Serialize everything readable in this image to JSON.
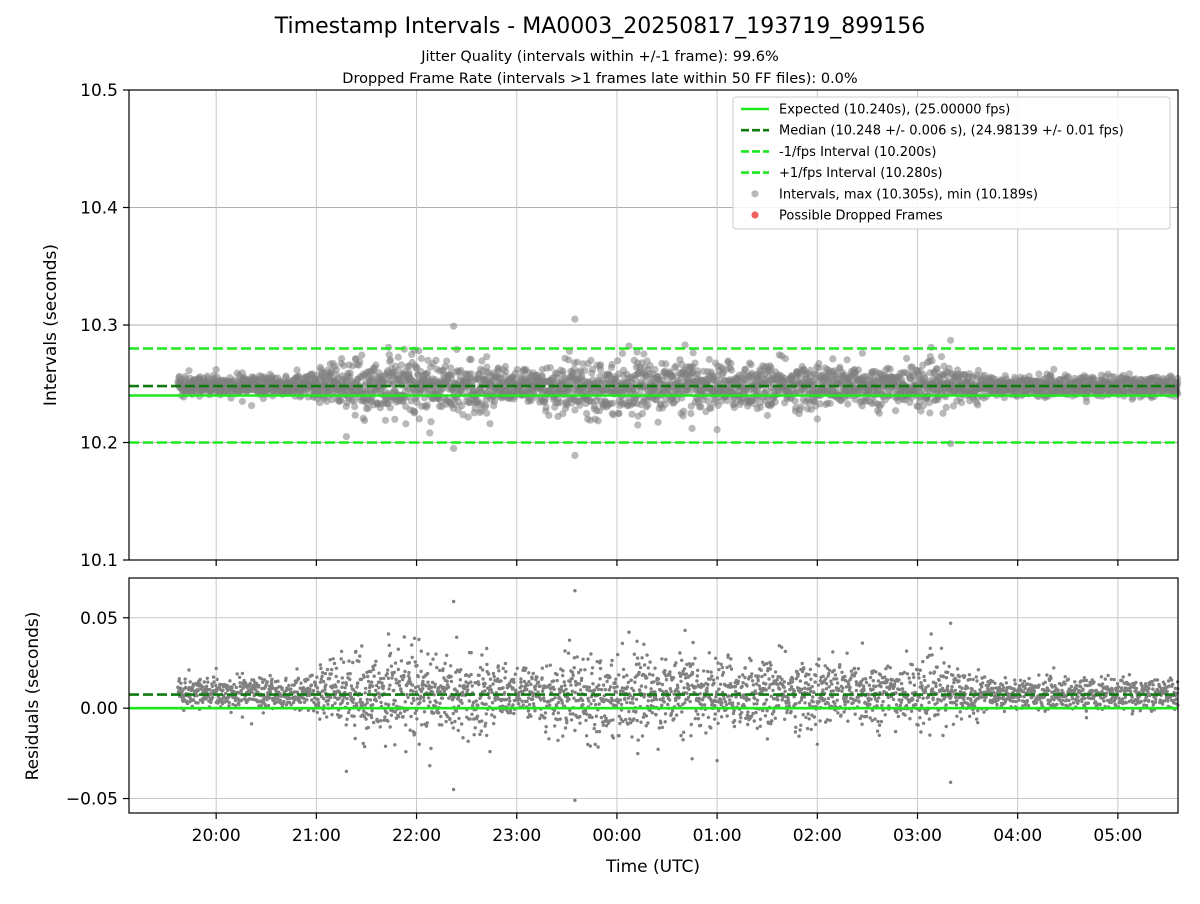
{
  "chart_data": [
    {
      "type": "scatter",
      "title": "Timestamp Intervals - MA0003_20250817_193719_899156",
      "subtitles": [
        "Jitter Quality (intervals within +/-1 frame): 99.6%",
        "Dropped Frame Rate (intervals >1 frames late within 50 FF files): 0.0%"
      ],
      "ylabel": "Intervals (seconds)",
      "ylim": [
        10.1,
        10.5
      ],
      "y_ticks": [
        "10.1",
        "10.2",
        "10.3",
        "10.4",
        "10.5"
      ],
      "grid": true,
      "legend_position": "top-right",
      "colors": {
        "expected": "#1ee81e",
        "median": "#107a10",
        "interval_band": "#1ee81e",
        "points": "#808080",
        "dropped": "#f05050"
      },
      "legend": [
        "Expected (10.240s), (25.00000 fps)",
        "Median (10.248 +/- 0.006 s), (24.98139 +/- 0.01 fps)",
        "-1/fps Interval (10.200s)",
        "+1/fps Interval (10.280s)",
        "Intervals, max (10.305s), min (10.189s)",
        "Possible Dropped Frames"
      ],
      "reference_lines": {
        "expected": 10.24,
        "median": 10.248,
        "minus_one_fps": 10.2,
        "plus_one_fps": 10.28
      },
      "series": [
        {
          "name": "Intervals, max (10.305s), min (10.189s)",
          "max": 10.305,
          "min": 10.189,
          "time_range_hours": [
            19.62,
            29.6
          ],
          "median": 10.248,
          "spread_profile": [
            [
              19.62,
              0.006
            ],
            [
              20.9,
              0.006
            ],
            [
              21.2,
              0.014
            ],
            [
              22.0,
              0.017
            ],
            [
              22.6,
              0.016
            ],
            [
              23.0,
              0.009
            ],
            [
              23.6,
              0.016
            ],
            [
              24.5,
              0.014
            ],
            [
              25.6,
              0.013
            ],
            [
              26.7,
              0.012
            ],
            [
              27.3,
              0.012
            ],
            [
              27.7,
              0.006
            ],
            [
              29.6,
              0.006
            ]
          ],
          "outliers": [
            [
              22.37,
              10.299
            ],
            [
              22.37,
              10.195
            ],
            [
              23.58,
              10.305
            ],
            [
              23.58,
              10.189
            ],
            [
              27.33,
              10.287
            ],
            [
              27.33,
              10.199
            ],
            [
              20.0,
              10.262
            ],
            [
              21.72,
              10.281
            ],
            [
              24.68,
              10.283
            ],
            [
              22.7,
              10.273
            ],
            [
              24.2,
              10.277
            ],
            [
              26.45,
              10.276
            ],
            [
              21.3,
              10.205
            ],
            [
              25.0,
              10.211
            ],
            [
              24.75,
              10.212
            ],
            [
              26.0,
              10.22
            ]
          ]
        },
        {
          "name": "Possible Dropped Frames",
          "points": []
        }
      ]
    },
    {
      "type": "scatter",
      "xlabel": "Time (UTC)",
      "ylabel": "Residuals (seconds)",
      "ylim": [
        -0.058,
        0.072
      ],
      "y_ticks": [
        "−0.05",
        "0.00",
        "0.05"
      ],
      "x_ticks": [
        "20:00",
        "21:00",
        "22:00",
        "23:00",
        "00:00",
        "01:00",
        "02:00",
        "03:00",
        "04:00",
        "05:00"
      ],
      "x_tick_hours": [
        20,
        21,
        22,
        23,
        24,
        25,
        26,
        27,
        28,
        29
      ],
      "xlim_hours": [
        19.13,
        29.6
      ],
      "grid": true,
      "reference_lines": {
        "zero": 0.0,
        "median_offset": 0.0075
      },
      "series": [
        {
          "name": "Residuals",
          "max": 0.065,
          "min": -0.051
        }
      ]
    }
  ]
}
